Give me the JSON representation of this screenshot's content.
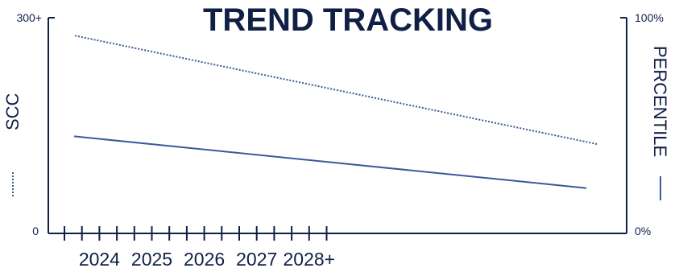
{
  "colors": {
    "text": "#0f1f45",
    "axis": "#0f1f45",
    "series": "#3a5a9a"
  },
  "chart_data": {
    "type": "line",
    "title": "TREND TRACKING",
    "x_tick_labels": [
      "2024",
      "2025",
      "2026",
      "2027",
      "2028+"
    ],
    "y_left": {
      "label": "SCC",
      "min_label": "0",
      "max_label": "300+",
      "range": [
        0,
        300
      ]
    },
    "y_right": {
      "label": "PERCENTILE",
      "min_label": "0%",
      "max_label": "100%",
      "range": [
        0,
        100
      ]
    },
    "series": [
      {
        "axis": "left",
        "style": "dotted",
        "values": [
          275,
          124
        ]
      },
      {
        "axis": "right",
        "style": "solid",
        "values": [
          45,
          21
        ]
      }
    ]
  }
}
